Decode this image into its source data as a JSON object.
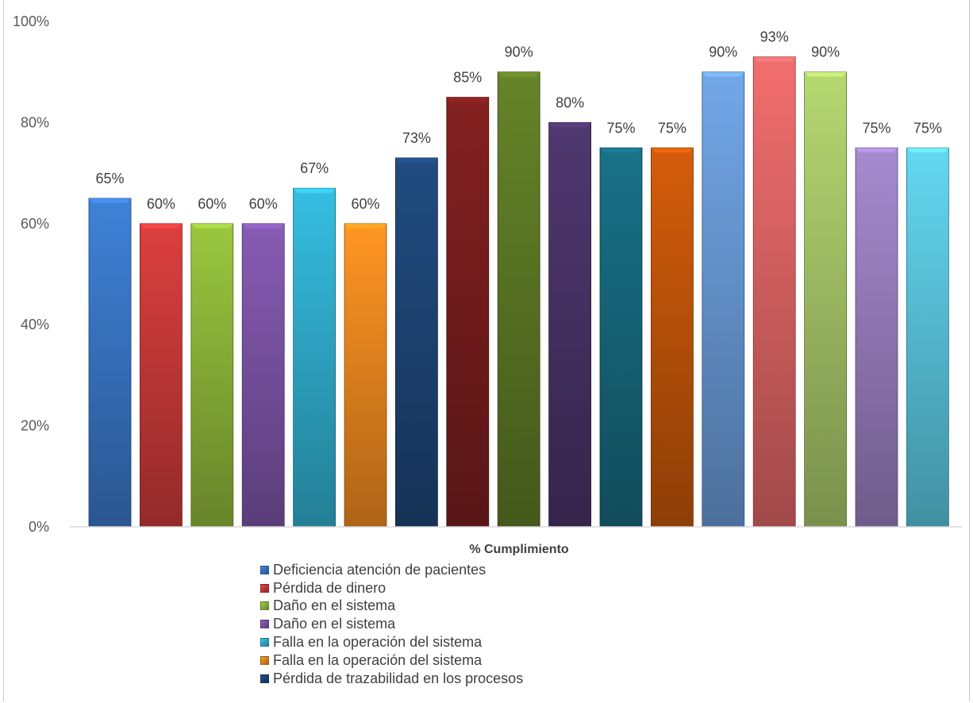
{
  "chart_data": {
    "type": "bar",
    "title": "",
    "xlabel": "% Cumplimiento",
    "ylabel": "",
    "ylim": [
      0,
      100
    ],
    "yticks": [
      "0%",
      "20%",
      "40%",
      "60%",
      "80%",
      "100%"
    ],
    "grid": false,
    "legend_position": "bottom",
    "categories": [
      "% Cumplimiento"
    ],
    "series": [
      {
        "name": "Deficiencia atención de pacientes",
        "value": 65,
        "label": "65%",
        "color": "#3a78c8"
      },
      {
        "name": "Pérdida de dinero",
        "value": 60,
        "label": "60%",
        "color": "#cc3a3a"
      },
      {
        "name": "Daño en el sistema",
        "value": 60,
        "label": "60%",
        "color": "#8fb83a"
      },
      {
        "name": "Daño en el sistema",
        "value": 60,
        "label": "60%",
        "color": "#7d55a8"
      },
      {
        "name": "Falla en la operación del sistema",
        "value": 67,
        "label": "67%",
        "color": "#31b0d0"
      },
      {
        "name": "Falla en la operación del sistema",
        "value": 60,
        "label": "60%",
        "color": "#f28b20"
      },
      {
        "name": "Pérdida de trazabilidad en los procesos",
        "value": 73,
        "label": "73%",
        "color": "#1f4677"
      },
      {
        "name": "",
        "value": 85,
        "label": "85%",
        "color": "#7a1e1e"
      },
      {
        "name": "",
        "value": 90,
        "label": "90%",
        "color": "#5e7a26"
      },
      {
        "name": "",
        "value": 80,
        "label": "80%",
        "color": "#4a3468"
      },
      {
        "name": "",
        "value": 75,
        "label": "75%",
        "color": "#17697e"
      },
      {
        "name": "",
        "value": 75,
        "label": "75%",
        "color": "#c4560a"
      },
      {
        "name": "",
        "value": 90,
        "label": "90%",
        "color": "#6a9bd8"
      },
      {
        "name": "",
        "value": 93,
        "label": "93%",
        "color": "#e06666"
      },
      {
        "name": "",
        "value": 90,
        "label": "90%",
        "color": "#a8c869"
      },
      {
        "name": "",
        "value": 75,
        "label": "75%",
        "color": "#9a80c0"
      },
      {
        "name": "",
        "value": 75,
        "label": "75%",
        "color": "#5cc8e0"
      }
    ]
  }
}
